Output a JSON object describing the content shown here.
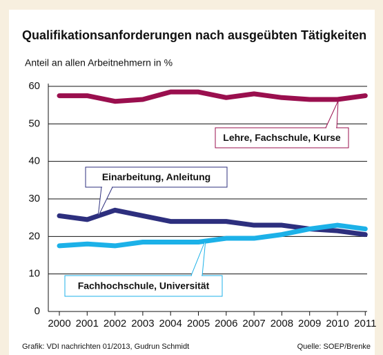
{
  "chart_data": {
    "type": "line",
    "title": "Qualifikationsanforderungen nach ausgeübten Tätigkeiten",
    "subtitle": "Anteil an allen Arbeitnehmern in %",
    "categories": [
      "2000",
      "2001",
      "2002",
      "2003",
      "2004",
      "2005",
      "2006",
      "2007",
      "2008",
      "2009",
      "2010",
      "2011"
    ],
    "series": [
      {
        "name": "Lehre, Fachschule, Kurse",
        "color": "#9a0f4e",
        "values": [
          57.5,
          57.5,
          56,
          56.5,
          58.5,
          58.5,
          57,
          58,
          57,
          56.5,
          56.5,
          57.5
        ]
      },
      {
        "name": "Einarbeitung, Anleitung",
        "color": "#2d2f7e",
        "values": [
          25.5,
          24.5,
          27,
          25.5,
          24,
          24,
          24,
          23,
          23,
          22,
          21.5,
          20.5
        ]
      },
      {
        "name": "Fachhochschule, Universität",
        "color": "#1cb1e8",
        "values": [
          17.5,
          18,
          17.5,
          18.5,
          18.5,
          18.5,
          19.5,
          19.5,
          20.5,
          22,
          23,
          22
        ]
      }
    ],
    "ylim": [
      0,
      60
    ],
    "yticks": [
      0,
      10,
      20,
      30,
      40,
      50,
      60
    ],
    "grid": true,
    "source_left": "Grafik: VDI nachrichten 01/2013, Gudrun Schmidt",
    "source_right": "Quelle: SOEP/Brenke"
  }
}
